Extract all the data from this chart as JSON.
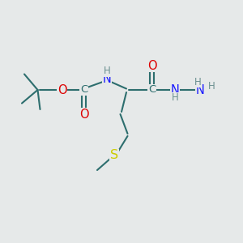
{
  "bg_color": "#e6e9e9",
  "bond_color": "#2d6e6e",
  "bond_width": 1.5,
  "atom_colors": {
    "C": "#2d6e6e",
    "N": "#1a1aff",
    "O": "#dd0000",
    "S": "#cccc00",
    "H": "#6b9090"
  },
  "font_size": 9.5,
  "figsize": [
    3.0,
    3.0
  ],
  "dpi": 100,
  "xlim": [
    0,
    10
  ],
  "ylim": [
    0,
    10
  ]
}
